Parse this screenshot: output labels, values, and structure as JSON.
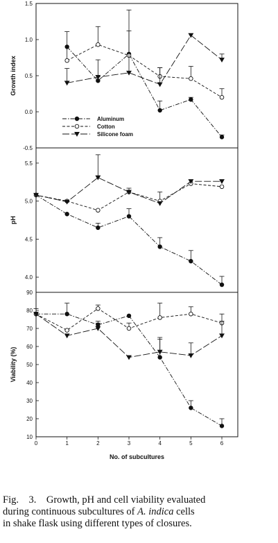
{
  "chart_data": [
    {
      "type": "line",
      "ylabel": "Growth index",
      "ylim": [
        -0.5,
        1.5
      ],
      "yticks": [
        "1.5",
        "1.0",
        "0.5",
        "0.0",
        "-0.5"
      ],
      "x": [
        0,
        1,
        2,
        3,
        4,
        5,
        6
      ],
      "legend": "bottom-left",
      "series": [
        {
          "name": "Aluminum",
          "marker": "filled-circle",
          "values": [
            null,
            0.9,
            0.43,
            0.8,
            0.02,
            0.17,
            -0.35
          ],
          "errors": [
            null,
            0,
            0,
            0,
            0.13,
            0.03,
            0.03
          ]
        },
        {
          "name": "Cotton",
          "marker": "open-circle",
          "values": [
            null,
            0.71,
            0.93,
            0.78,
            0.49,
            0.46,
            0.2
          ],
          "errors": [
            null,
            0.4,
            0.25,
            0.34,
            0.12,
            0.17,
            0.12
          ]
        },
        {
          "name": "Silicone foam",
          "marker": "filled-triangle-down",
          "values": [
            null,
            0.4,
            0.48,
            0.54,
            0.38,
            1.06,
            0.72
          ],
          "errors": [
            null,
            0.2,
            0.24,
            0.87,
            0.23,
            0,
            0.08
          ]
        }
      ]
    },
    {
      "type": "line",
      "ylabel": "pH",
      "ylim": [
        3.8,
        5.7
      ],
      "yticks": [
        "5.5",
        "5.0",
        "4.5",
        "4.0"
      ],
      "x": [
        0,
        1,
        2,
        3,
        4,
        5,
        6
      ],
      "series": [
        {
          "name": "Aluminum",
          "marker": "filled-circle",
          "values": [
            5.08,
            4.83,
            4.65,
            4.8,
            4.4,
            4.21,
            3.9
          ],
          "errors": [
            0,
            0,
            0.06,
            0.1,
            0.12,
            0.14,
            0.11
          ]
        },
        {
          "name": "Cotton",
          "marker": "open-circle",
          "values": [
            5.08,
            5.0,
            4.88,
            5.12,
            5.0,
            5.23,
            5.19
          ],
          "errors": [
            0,
            0,
            0,
            0,
            0.12,
            0,
            0
          ]
        },
        {
          "name": "Silicone foam",
          "marker": "filled-triangle-down",
          "values": [
            5.08,
            4.99,
            5.31,
            5.12,
            4.97,
            5.26,
            5.26
          ],
          "errors": [
            0,
            0,
            0.3,
            0.05,
            0,
            0,
            0
          ]
        }
      ]
    },
    {
      "type": "line",
      "ylabel": "Viability (%)",
      "xlabel": "No. of subcultures",
      "ylim": [
        10,
        90
      ],
      "yticks": [
        "90",
        "80",
        "70",
        "60",
        "50",
        "40",
        "30",
        "20",
        "10"
      ],
      "x": [
        0,
        1,
        2,
        3,
        4,
        5,
        6
      ],
      "xticks": [
        "0",
        "1",
        "2",
        "3",
        "4",
        "5",
        "6"
      ],
      "series": [
        {
          "name": "Aluminum",
          "marker": "filled-circle",
          "values": [
            78,
            78,
            72,
            77,
            54,
            26,
            16
          ],
          "errors": [
            3,
            6,
            2,
            0,
            11,
            4,
            4
          ]
        },
        {
          "name": "Cotton",
          "marker": "open-circle",
          "values": [
            78,
            69,
            81,
            70,
            76,
            78,
            73
          ],
          "errors": [
            0,
            0,
            2,
            3,
            8,
            4,
            5
          ]
        },
        {
          "name": "Silicone foam",
          "marker": "filled-triangle-down",
          "values": [
            78,
            66,
            70,
            54,
            57,
            55,
            66
          ],
          "errors": [
            0,
            0,
            3,
            0,
            7,
            7,
            8
          ]
        }
      ]
    }
  ],
  "caption": {
    "lines": [
      [
        {
          "t": "Fig.    3.    Growth, pH and cell viability evaluated",
          "i": false
        }
      ],
      [
        {
          "t": "during continuous subcultures of ",
          "i": false
        },
        {
          "t": "A. indica",
          "i": true
        },
        {
          "t": " cells",
          "i": false
        }
      ],
      [
        {
          "t": "in shake flask using different types of closures.",
          "i": false
        }
      ]
    ]
  }
}
